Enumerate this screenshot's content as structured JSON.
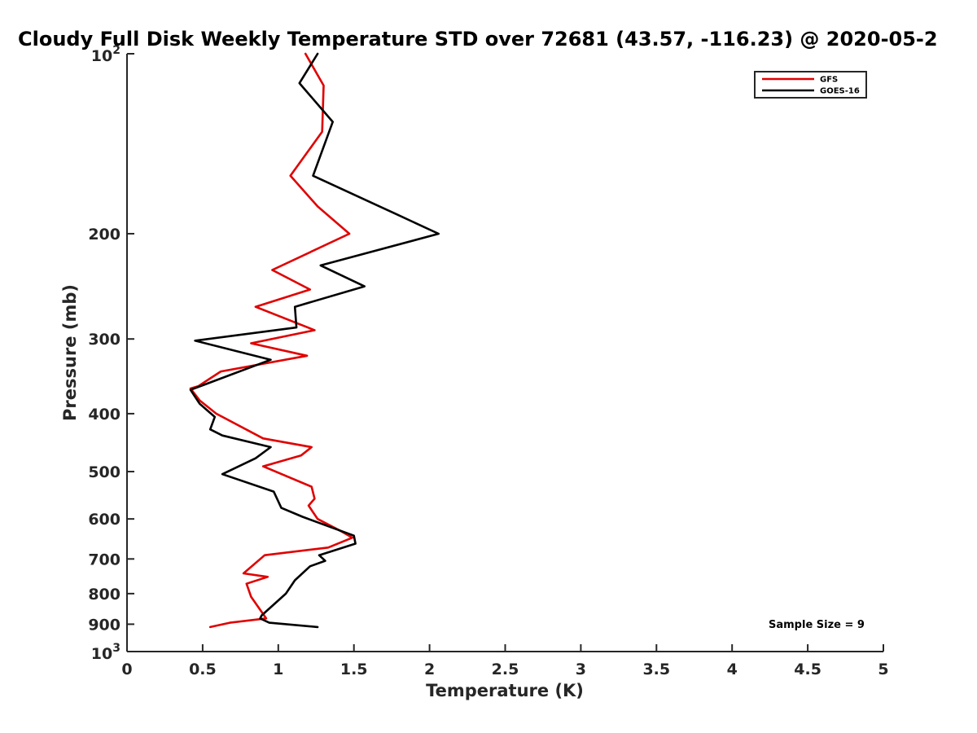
{
  "chart_data": {
    "type": "line",
    "title": "Cloudy Full Disk Weekly Temperature STD over 72681 (43.57, -116.23) @ 2020-05-2",
    "xlabel": "Temperature (K)",
    "ylabel": "Pressure (mb)",
    "xlim": [
      0,
      5
    ],
    "ylim": [
      100,
      1000
    ],
    "y_scale": "log",
    "y_reversed": true,
    "grid": false,
    "legend_position": "top-right",
    "x_ticks": [
      "0",
      "0.5",
      "1",
      "1.5",
      "2",
      "2.5",
      "3",
      "3.5",
      "4",
      "4.5",
      "5"
    ],
    "y_ticks": [
      {
        "value": 200,
        "label": "200"
      },
      {
        "value": 300,
        "label": "300"
      },
      {
        "value": 400,
        "label": "400"
      },
      {
        "value": 500,
        "label": "500"
      },
      {
        "value": 600,
        "label": "600"
      },
      {
        "value": 700,
        "label": "700"
      },
      {
        "value": 800,
        "label": "800"
      },
      {
        "value": 900,
        "label": "900"
      }
    ],
    "y_end_labels": [
      {
        "value": 100,
        "base": "10",
        "exp": "2"
      },
      {
        "value": 1000,
        "base": "10",
        "exp": "3"
      }
    ],
    "annotation": "Sample Size = 9",
    "series": [
      {
        "name": "GFS",
        "color": "#e00000",
        "points": [
          [
            1.18,
            100
          ],
          [
            1.3,
            113
          ],
          [
            1.29,
            135
          ],
          [
            1.08,
            160
          ],
          [
            1.26,
            180
          ],
          [
            1.47,
            200
          ],
          [
            0.96,
            230
          ],
          [
            1.21,
            248
          ],
          [
            0.85,
            265
          ],
          [
            1.24,
            290
          ],
          [
            0.82,
            305
          ],
          [
            1.19,
            320
          ],
          [
            0.62,
            340
          ],
          [
            0.47,
            360
          ],
          [
            0.42,
            363
          ],
          [
            0.48,
            380
          ],
          [
            0.59,
            400
          ],
          [
            0.9,
            440
          ],
          [
            1.22,
            455
          ],
          [
            1.15,
            470
          ],
          [
            0.9,
            490
          ],
          [
            1.22,
            530
          ],
          [
            1.24,
            555
          ],
          [
            1.2,
            570
          ],
          [
            1.26,
            600
          ],
          [
            1.42,
            630
          ],
          [
            1.49,
            645
          ],
          [
            1.33,
            670
          ],
          [
            0.91,
            690
          ],
          [
            0.77,
            740
          ],
          [
            0.93,
            750
          ],
          [
            0.79,
            770
          ],
          [
            0.82,
            810
          ],
          [
            0.92,
            880
          ],
          [
            0.68,
            895
          ],
          [
            0.55,
            910
          ]
        ]
      },
      {
        "name": "GOES-16",
        "color": "#000000",
        "points": [
          [
            1.26,
            100
          ],
          [
            1.14,
            112
          ],
          [
            1.36,
            130
          ],
          [
            1.23,
            160
          ],
          [
            1.77,
            185
          ],
          [
            2.06,
            200
          ],
          [
            1.28,
            226
          ],
          [
            1.57,
            245
          ],
          [
            1.11,
            265
          ],
          [
            1.12,
            287
          ],
          [
            0.45,
            302
          ],
          [
            0.95,
            325
          ],
          [
            0.42,
            365
          ],
          [
            0.48,
            385
          ],
          [
            0.58,
            405
          ],
          [
            0.55,
            425
          ],
          [
            0.63,
            435
          ],
          [
            0.95,
            455
          ],
          [
            0.85,
            475
          ],
          [
            0.63,
            505
          ],
          [
            0.97,
            540
          ],
          [
            1.02,
            575
          ],
          [
            1.16,
            595
          ],
          [
            1.5,
            640
          ],
          [
            1.51,
            660
          ],
          [
            1.27,
            690
          ],
          [
            1.31,
            705
          ],
          [
            1.21,
            720
          ],
          [
            1.11,
            760
          ],
          [
            1.05,
            800
          ],
          [
            0.89,
            870
          ],
          [
            0.88,
            880
          ],
          [
            0.94,
            895
          ],
          [
            1.26,
            910
          ]
        ]
      }
    ]
  }
}
